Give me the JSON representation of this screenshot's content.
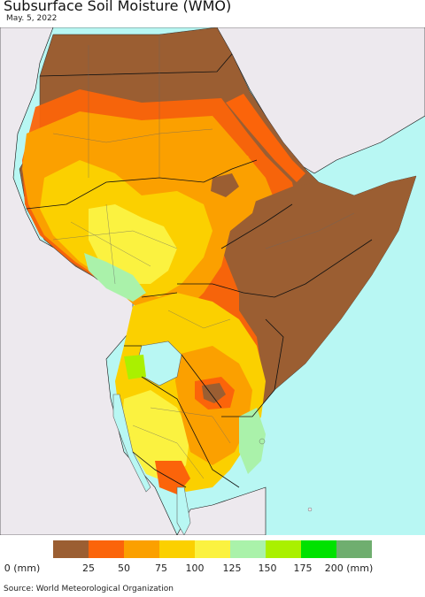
{
  "title": "Subsurface Soil Moisture (WMO)",
  "date": "May. 5, 2022",
  "legend": {
    "colors": [
      "#9b5e32",
      "#fb640a",
      "#fba000",
      "#fbd000",
      "#fbf240",
      "#aaf2aa",
      "#aaf000",
      "#00e200",
      "#6fae6f"
    ],
    "labels": [
      "0 (mm)",
      "25",
      "50",
      "75",
      "100",
      "125",
      "150",
      "175",
      "200 (mm)"
    ]
  },
  "source": "Source: World Meteorological Organization"
}
